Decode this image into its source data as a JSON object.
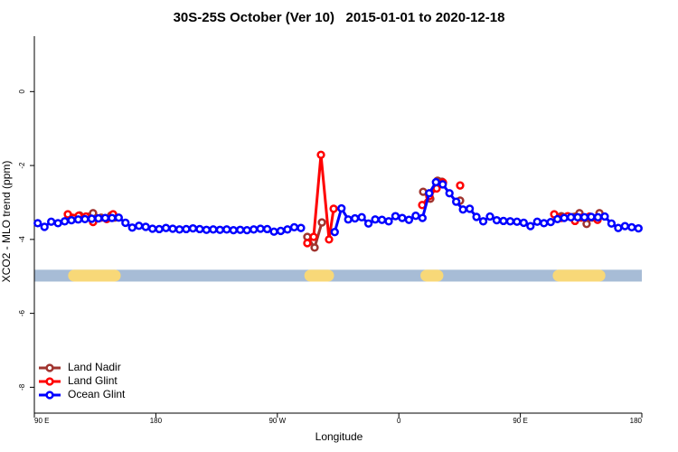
{
  "chart_data": {
    "type": "line",
    "title": "30S-25S October (Ver 10)   2015-01-01 to 2020-12-18",
    "xlabel": "Longitude",
    "ylabel": "XCO2 - MLO trend (ppm)",
    "xlim": [
      90,
      540
    ],
    "xticks": [
      {
        "value": 90,
        "label": "90 E"
      },
      {
        "value": 180,
        "label": "180"
      },
      {
        "value": 270,
        "label": "90 W"
      },
      {
        "value": 360,
        "label": "0"
      },
      {
        "value": 450,
        "label": "90 E"
      },
      {
        "value": 540,
        "label": "180"
      }
    ],
    "ylim": [
      -8.7,
      1.5
    ],
    "yticks": [
      0,
      -2,
      -4,
      -6,
      -8
    ],
    "legend": "bottom-left",
    "mask_band": {
      "ylim": [
        -4.82,
        -5.14
      ],
      "ocean_color": "#a7bcd6",
      "land_color": "#f8d878",
      "land": [
        [
          115,
          154
        ],
        [
          290,
          312
        ],
        [
          376,
          393
        ],
        [
          474,
          513
        ]
      ]
    },
    "series": [
      {
        "name": "Land Nadir",
        "color": "#a0342f",
        "x": [
          123.5,
          133.5,
          139.5,
          146.9,
          149.6,
          220,
          292.2,
          297.6,
          303.0,
          340,
          378.0,
          383.3,
          388.7,
          392.0,
          400,
          405.4,
          440,
          480.4,
          493.8,
          499.1,
          503.2,
          508.6
        ],
        "values": [
          -3.35,
          -3.29,
          -3.41,
          -3.35,
          -3.41,
          null,
          -3.93,
          -4.22,
          -3.54,
          null,
          -2.71,
          -2.9,
          -2.41,
          -2.44,
          null,
          -2.95,
          null,
          -3.37,
          -3.29,
          -3.58,
          -3.41,
          -3.29
        ]
      },
      {
        "name": "Land Glint",
        "color": "#ff0000",
        "x": [
          114.8,
          122.8,
          128.2,
          133.5,
          143.6,
          148.3,
          220,
          292.2,
          296.9,
          302.3,
          308.3,
          311.7,
          340,
          377.3,
          382.6,
          388.0,
          392.7,
          400,
          405.4,
          440,
          475.1,
          480.4,
          485.1,
          490.5,
          495.1,
          501.2,
          507.2
        ],
        "values": [
          -3.32,
          -3.36,
          -3.38,
          -3.53,
          -3.45,
          -3.32,
          null,
          -4.1,
          -3.93,
          -1.71,
          -4.0,
          -3.17,
          null,
          -3.07,
          -2.83,
          -2.62,
          -2.46,
          null,
          -2.54,
          null,
          -3.32,
          -3.42,
          -3.37,
          -3.5,
          -3.41,
          -3.38,
          -3.47
        ]
      },
      {
        "name": "Ocean Glint",
        "color": "#0000ff",
        "x": [
          92.5,
          97.5,
          102.5,
          107.5,
          112.5,
          117.5,
          122.5,
          127.5,
          132.5,
          137.5,
          142.5,
          147.5,
          152.5,
          157.5,
          162.5,
          167.5,
          172.5,
          177.5,
          182.5,
          187.5,
          192.5,
          197.5,
          202.5,
          207.5,
          212.5,
          217.5,
          222.5,
          227.5,
          232.5,
          237.5,
          242.5,
          247.5,
          252.5,
          257.5,
          262.5,
          267.5,
          272.5,
          277.5,
          282.5,
          287.5,
          292.5,
          297.5,
          302.5,
          307.5,
          312.5,
          317.5,
          322.5,
          327.5,
          332.5,
          337.5,
          342.5,
          347.5,
          352.5,
          357.5,
          362.5,
          367.5,
          372.5,
          377.5,
          382.5,
          387.5,
          392.5,
          397.5,
          402.5,
          407.5,
          412.5,
          417.5,
          422.5,
          427.5,
          432.5,
          437.5,
          442.5,
          447.5,
          452.5,
          457.5,
          462.5,
          467.5,
          472.5,
          477.5,
          482.5,
          487.5,
          492.5,
          497.5,
          502.5,
          507.5,
          512.5,
          517.5,
          522.5,
          527.5,
          532.5,
          537.5
        ],
        "values": [
          -3.56,
          -3.66,
          -3.52,
          -3.56,
          -3.51,
          -3.48,
          -3.46,
          -3.45,
          -3.44,
          -3.43,
          -3.42,
          -3.42,
          -3.41,
          -3.55,
          -3.68,
          -3.63,
          -3.66,
          -3.71,
          -3.72,
          -3.69,
          -3.71,
          -3.73,
          -3.72,
          -3.7,
          -3.72,
          -3.74,
          -3.73,
          -3.74,
          -3.73,
          -3.75,
          -3.74,
          -3.75,
          -3.73,
          -3.71,
          -3.72,
          -3.79,
          -3.77,
          -3.73,
          -3.67,
          -3.69,
          null,
          null,
          null,
          null,
          -3.8,
          -3.16,
          -3.46,
          -3.43,
          -3.4,
          -3.57,
          -3.46,
          -3.47,
          -3.51,
          -3.37,
          -3.42,
          -3.47,
          -3.36,
          -3.42,
          -2.75,
          -2.45,
          -2.51,
          -2.75,
          -2.98,
          -3.19,
          -3.17,
          -3.39,
          -3.51,
          -3.38,
          -3.48,
          -3.5,
          -3.51,
          -3.52,
          -3.55,
          -3.64,
          -3.52,
          -3.56,
          -3.53,
          -3.45,
          -3.42,
          -3.4,
          -3.4,
          -3.4,
          -3.39,
          -3.4,
          -3.38,
          -3.57,
          -3.69,
          -3.64,
          -3.67,
          -3.7
        ]
      }
    ]
  }
}
